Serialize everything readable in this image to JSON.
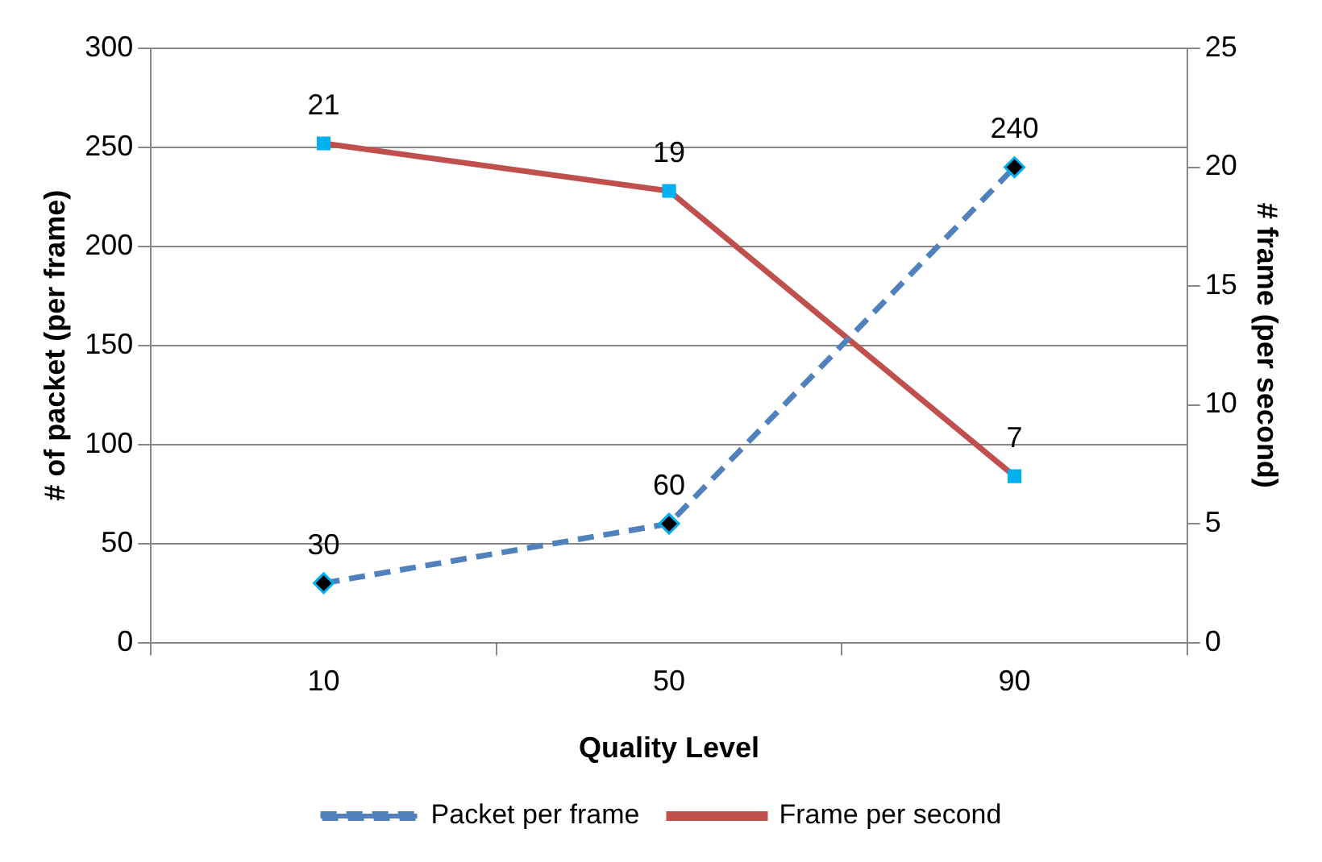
{
  "chart_data": {
    "type": "line",
    "xlabel": "Quality Level",
    "ylabel": "# of packet (per frame)",
    "y2label": "# frame (per second)",
    "categories": [
      "10",
      "50",
      "90"
    ],
    "series": [
      {
        "name": "Packet per frame",
        "color": "#4f81bd",
        "values": [
          30,
          60,
          240
        ],
        "marker": "diamond",
        "line_style": "dashed"
      },
      {
        "name": "Frame per second",
        "color": "#c0504d",
        "values": [
          21,
          19,
          7
        ],
        "marker": "square",
        "line_style": "solid",
        "axis": "y2"
      }
    ],
    "ylim": [
      0,
      300
    ],
    "yticks": [
      0,
      50,
      100,
      150,
      200,
      250,
      300
    ],
    "y2lim": [
      0,
      25
    ],
    "y2ticks": [
      0,
      5,
      10,
      15,
      20,
      25
    ],
    "grid": "y",
    "legend": "bottom",
    "data_labels": true
  }
}
